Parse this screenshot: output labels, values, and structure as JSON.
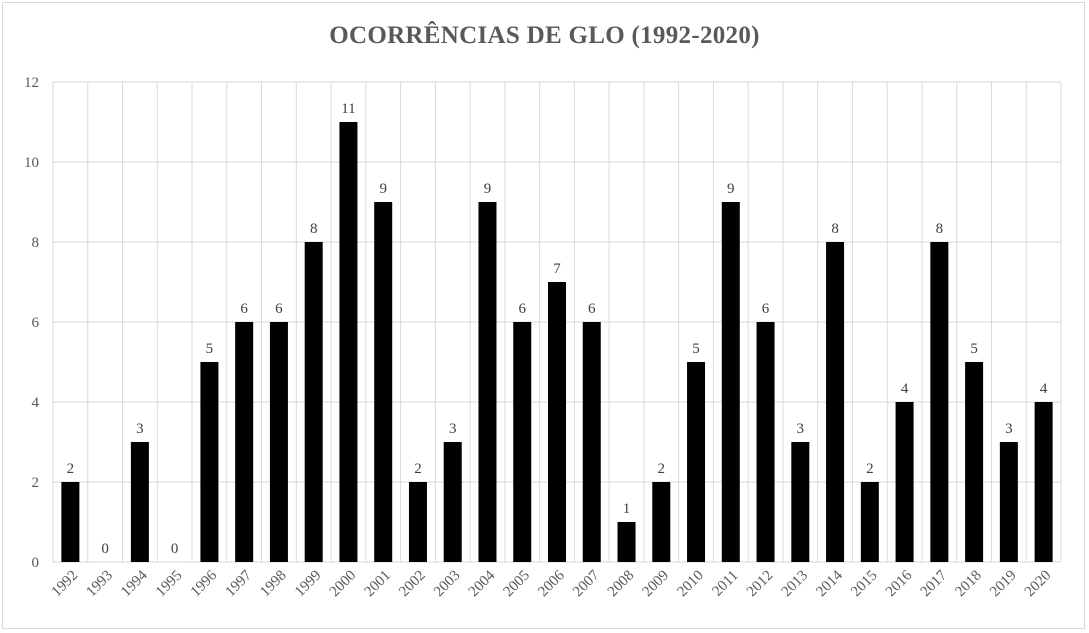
{
  "chart_data": {
    "type": "bar",
    "title": "OCORRÊNCIAS DE GLO (1992-2020)",
    "xlabel": "",
    "ylabel": "",
    "categories": [
      "1992",
      "1993",
      "1994",
      "1995",
      "1996",
      "1997",
      "1998",
      "1999",
      "2000",
      "2001",
      "2002",
      "2003",
      "2004",
      "2005",
      "2006",
      "2007",
      "2008",
      "2009",
      "2010",
      "2011",
      "2012",
      "2013",
      "2014",
      "2015",
      "2016",
      "2017",
      "2018",
      "2019",
      "2020"
    ],
    "values": [
      2,
      0,
      3,
      0,
      5,
      6,
      6,
      8,
      11,
      9,
      2,
      3,
      9,
      6,
      7,
      6,
      1,
      2,
      5,
      9,
      6,
      3,
      8,
      2,
      4,
      8,
      5,
      3,
      4
    ],
    "ylim": [
      0,
      12
    ],
    "yticks": [
      0,
      2,
      4,
      6,
      8,
      10,
      12
    ],
    "grid": true,
    "legend": "none",
    "data_labels": true,
    "colors": {
      "bar": "#000000",
      "grid": "#d9d9d9",
      "axis_text": "#595959",
      "label_text": "#404040"
    }
  }
}
